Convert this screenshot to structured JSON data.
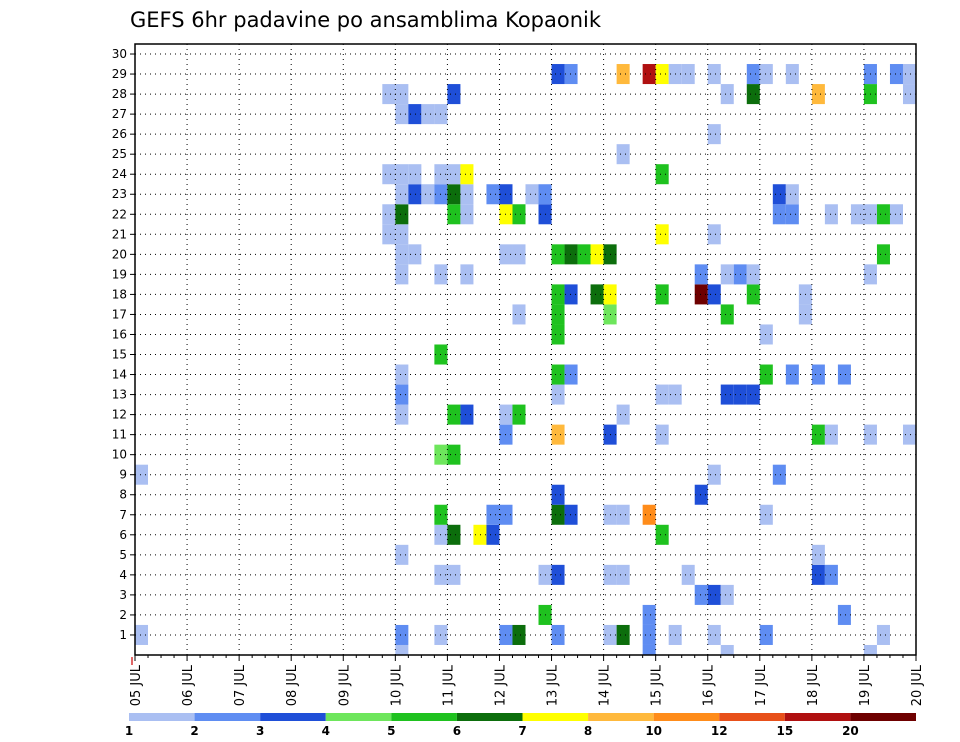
{
  "chart_data": {
    "type": "heatmap",
    "title": "GEFS 6hr padavine po ansamblima Kopaonik",
    "xlabel": "",
    "ylabel": "",
    "x_tick_labels": [
      "05 JUL",
      "06 JUL",
      "07 JUL",
      "08 JUL",
      "09 JUL",
      "10 JUL",
      "11 JUL",
      "12 JUL",
      "13 JUL",
      "14 JUL",
      "15 JUL",
      "16 JUL",
      "17 JUL",
      "18 JUL",
      "19 JUL",
      "20 JUL"
    ],
    "y_tick_labels": [
      "1",
      "2",
      "3",
      "4",
      "5",
      "6",
      "7",
      "8",
      "9",
      "10",
      "11",
      "12",
      "13",
      "14",
      "15",
      "16",
      "17",
      "18",
      "19",
      "20",
      "21",
      "22",
      "23",
      "24",
      "25",
      "26",
      "27",
      "28",
      "29",
      "30"
    ],
    "x_range_days": [
      0,
      15
    ],
    "y_range": [
      0,
      30
    ],
    "grid": "dotted",
    "legend": {
      "placement": "bottom",
      "labels": [
        "1",
        "2",
        "3",
        "4",
        "5",
        "6",
        "7",
        "8",
        "10",
        "12",
        "15",
        "20"
      ],
      "colors": [
        "#aabff2",
        "#5f8df2",
        "#1f4fd8",
        "#6ee65c",
        "#1fc21f",
        "#0c6e0c",
        "#ffff00",
        "#ffb93c",
        "#ff8c1a",
        "#e8501a",
        "#b01010",
        "#6e0000"
      ]
    },
    "cells": [
      [
        0.0,
        1,
        1
      ],
      [
        0.0,
        9,
        1
      ],
      [
        5.0,
        0,
        1
      ],
      [
        5.0,
        1,
        2
      ],
      [
        5.0,
        5,
        1
      ],
      [
        5.0,
        12,
        1
      ],
      [
        5.0,
        13,
        2
      ],
      [
        5.0,
        14,
        1
      ],
      [
        4.75,
        21,
        1
      ],
      [
        4.75,
        22,
        1
      ],
      [
        4.75,
        24,
        1
      ],
      [
        4.75,
        28,
        1
      ],
      [
        5.0,
        19,
        1
      ],
      [
        5.0,
        20,
        1
      ],
      [
        5.0,
        21,
        1
      ],
      [
        5.0,
        22,
        6
      ],
      [
        5.0,
        23,
        1
      ],
      [
        5.0,
        24,
        1
      ],
      [
        5.0,
        27,
        1
      ],
      [
        5.0,
        28,
        1
      ],
      [
        5.25,
        20,
        1
      ],
      [
        5.25,
        23,
        3
      ],
      [
        5.25,
        24,
        1
      ],
      [
        5.25,
        27,
        3
      ],
      [
        5.5,
        23,
        1
      ],
      [
        5.5,
        27,
        1
      ],
      [
        5.75,
        1,
        1
      ],
      [
        5.75,
        4,
        1
      ],
      [
        5.75,
        6,
        1
      ],
      [
        5.75,
        7,
        5
      ],
      [
        5.75,
        10,
        4
      ],
      [
        5.75,
        15,
        5
      ],
      [
        5.75,
        19,
        1
      ],
      [
        5.75,
        23,
        2
      ],
      [
        5.75,
        24,
        1
      ],
      [
        5.75,
        27,
        1
      ],
      [
        6.0,
        4,
        1
      ],
      [
        6.0,
        6,
        6
      ],
      [
        6.0,
        10,
        5
      ],
      [
        6.0,
        12,
        5
      ],
      [
        6.0,
        22,
        5
      ],
      [
        6.0,
        23,
        6
      ],
      [
        6.0,
        24,
        1
      ],
      [
        6.0,
        28,
        3
      ],
      [
        6.25,
        12,
        3
      ],
      [
        6.25,
        19,
        1
      ],
      [
        6.25,
        22,
        1
      ],
      [
        6.25,
        23,
        1
      ],
      [
        6.25,
        24,
        7
      ],
      [
        6.5,
        6,
        7
      ],
      [
        6.75,
        6,
        3
      ],
      [
        6.75,
        7,
        2
      ],
      [
        6.75,
        23,
        2
      ],
      [
        7.0,
        1,
        2
      ],
      [
        7.0,
        7,
        2
      ],
      [
        7.0,
        11,
        2
      ],
      [
        7.0,
        12,
        1
      ],
      [
        7.0,
        20,
        1
      ],
      [
        7.0,
        22,
        7
      ],
      [
        7.0,
        23,
        3
      ],
      [
        7.25,
        1,
        6
      ],
      [
        7.25,
        12,
        5
      ],
      [
        7.25,
        17,
        1
      ],
      [
        7.25,
        20,
        1
      ],
      [
        7.25,
        22,
        5
      ],
      [
        7.5,
        23,
        1
      ],
      [
        7.75,
        2,
        5
      ],
      [
        7.75,
        4,
        1
      ],
      [
        7.75,
        22,
        3
      ],
      [
        7.75,
        23,
        2
      ],
      [
        8.0,
        1,
        2
      ],
      [
        8.0,
        4,
        3
      ],
      [
        8.0,
        7,
        6
      ],
      [
        8.0,
        8,
        3
      ],
      [
        8.0,
        11,
        8
      ],
      [
        8.0,
        13,
        1
      ],
      [
        8.0,
        14,
        5
      ],
      [
        8.0,
        16,
        5
      ],
      [
        8.0,
        17,
        5
      ],
      [
        8.0,
        18,
        5
      ],
      [
        8.0,
        20,
        5
      ],
      [
        8.0,
        29,
        3
      ],
      [
        8.25,
        7,
        3
      ],
      [
        8.25,
        14,
        2
      ],
      [
        8.25,
        18,
        3
      ],
      [
        8.25,
        20,
        6
      ],
      [
        8.25,
        29,
        2
      ],
      [
        8.5,
        20,
        5
      ],
      [
        8.75,
        18,
        6
      ],
      [
        8.75,
        20,
        7
      ],
      [
        9.0,
        1,
        1
      ],
      [
        9.0,
        4,
        1
      ],
      [
        9.0,
        7,
        1
      ],
      [
        9.0,
        11,
        3
      ],
      [
        9.0,
        17,
        4
      ],
      [
        9.0,
        18,
        7
      ],
      [
        9.0,
        20,
        6
      ],
      [
        9.25,
        1,
        6
      ],
      [
        9.25,
        4,
        1
      ],
      [
        9.25,
        7,
        1
      ],
      [
        9.25,
        12,
        1
      ],
      [
        9.25,
        25,
        1
      ],
      [
        9.25,
        29,
        8
      ],
      [
        9.75,
        0,
        2
      ],
      [
        9.75,
        1,
        2
      ],
      [
        9.75,
        2,
        2
      ],
      [
        9.75,
        7,
        9
      ],
      [
        9.75,
        29,
        11
      ],
      [
        10.0,
        6,
        5
      ],
      [
        10.0,
        11,
        1
      ],
      [
        10.0,
        13,
        1
      ],
      [
        10.0,
        18,
        5
      ],
      [
        10.0,
        21,
        7
      ],
      [
        10.0,
        24,
        5
      ],
      [
        10.0,
        29,
        7
      ],
      [
        10.25,
        1,
        1
      ],
      [
        10.25,
        13,
        1
      ],
      [
        10.25,
        29,
        1
      ],
      [
        10.5,
        4,
        1
      ],
      [
        10.5,
        29,
        1
      ],
      [
        10.75,
        3,
        2
      ],
      [
        10.75,
        8,
        3
      ],
      [
        10.75,
        18,
        12
      ],
      [
        10.75,
        19,
        2
      ],
      [
        11.0,
        1,
        1
      ],
      [
        11.0,
        3,
        3
      ],
      [
        11.0,
        9,
        1
      ],
      [
        11.0,
        18,
        3
      ],
      [
        11.0,
        21,
        1
      ],
      [
        11.0,
        26,
        1
      ],
      [
        11.0,
        29,
        1
      ],
      [
        11.25,
        0,
        1
      ],
      [
        11.25,
        3,
        1
      ],
      [
        11.25,
        13,
        3
      ],
      [
        11.25,
        17,
        5
      ],
      [
        11.25,
        19,
        1
      ],
      [
        11.25,
        28,
        1
      ],
      [
        11.5,
        13,
        3
      ],
      [
        11.5,
        19,
        2
      ],
      [
        11.75,
        13,
        3
      ],
      [
        11.75,
        18,
        5
      ],
      [
        11.75,
        19,
        1
      ],
      [
        11.75,
        28,
        6
      ],
      [
        11.75,
        29,
        2
      ],
      [
        12.0,
        1,
        2
      ],
      [
        12.0,
        7,
        1
      ],
      [
        12.0,
        14,
        5
      ],
      [
        12.0,
        16,
        1
      ],
      [
        12.0,
        29,
        1
      ],
      [
        12.25,
        9,
        2
      ],
      [
        12.25,
        22,
        2
      ],
      [
        12.25,
        23,
        3
      ],
      [
        12.5,
        14,
        2
      ],
      [
        12.5,
        22,
        2
      ],
      [
        12.5,
        23,
        1
      ],
      [
        12.5,
        29,
        1
      ],
      [
        12.75,
        17,
        1
      ],
      [
        12.75,
        18,
        1
      ],
      [
        13.0,
        4,
        3
      ],
      [
        13.0,
        5,
        1
      ],
      [
        13.0,
        11,
        5
      ],
      [
        13.0,
        14,
        2
      ],
      [
        13.0,
        28,
        8
      ],
      [
        13.25,
        4,
        2
      ],
      [
        13.25,
        11,
        1
      ],
      [
        13.25,
        22,
        1
      ],
      [
        13.5,
        2,
        2
      ],
      [
        13.5,
        14,
        2
      ],
      [
        13.75,
        22,
        1
      ],
      [
        14.0,
        0,
        1
      ],
      [
        14.0,
        11,
        1
      ],
      [
        14.0,
        19,
        1
      ],
      [
        14.0,
        22,
        1
      ],
      [
        14.0,
        28,
        5
      ],
      [
        14.0,
        29,
        2
      ],
      [
        14.25,
        1,
        1
      ],
      [
        14.25,
        20,
        5
      ],
      [
        14.25,
        22,
        5
      ],
      [
        14.5,
        22,
        1
      ],
      [
        14.5,
        29,
        2
      ],
      [
        14.75,
        11,
        1
      ],
      [
        14.75,
        28,
        1
      ],
      [
        14.75,
        29,
        1
      ],
      [
        15.0,
        9,
        9
      ],
      [
        15.0,
        10,
        5
      ],
      [
        15.0,
        14,
        7
      ],
      [
        15.0,
        15,
        5
      ],
      [
        15.0,
        20,
        3
      ]
    ]
  }
}
